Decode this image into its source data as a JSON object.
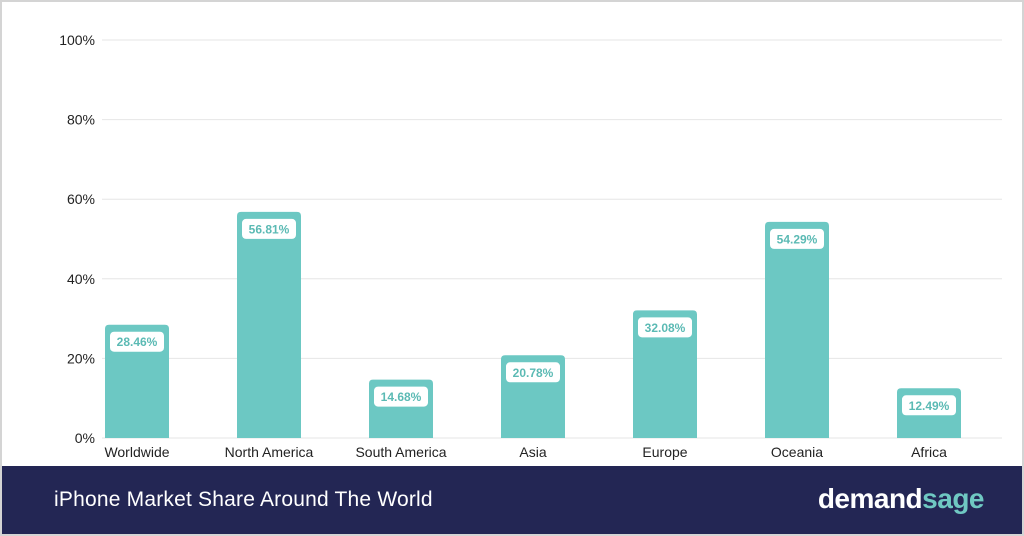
{
  "colors": {
    "bar": "#6cc8c3",
    "label_text": "#5bbab4",
    "grid": "#e6e6e6",
    "footer_bg": "#232654",
    "brand_accent": "#6fc8c2"
  },
  "footer": {
    "title": "iPhone Market Share Around The World",
    "brand_part1": "demand",
    "brand_part2": "sage"
  },
  "chart_data": {
    "type": "bar",
    "categories": [
      "Worldwide",
      "North America",
      "South America",
      "Asia",
      "Europe",
      "Oceania",
      "Africa"
    ],
    "values": [
      28.46,
      56.81,
      14.68,
      20.78,
      32.08,
      54.29,
      12.49
    ],
    "data_labels": [
      "28.46%",
      "56.81%",
      "14.68%",
      "20.78%",
      "32.08%",
      "54.29%",
      "12.49%"
    ],
    "yticks": [
      0,
      20,
      40,
      60,
      80,
      100
    ],
    "ytick_labels": [
      "0%",
      "20%",
      "40%",
      "60%",
      "80%",
      "100%"
    ],
    "ylim": [
      0,
      100
    ],
    "grid": true,
    "legend": "none"
  }
}
